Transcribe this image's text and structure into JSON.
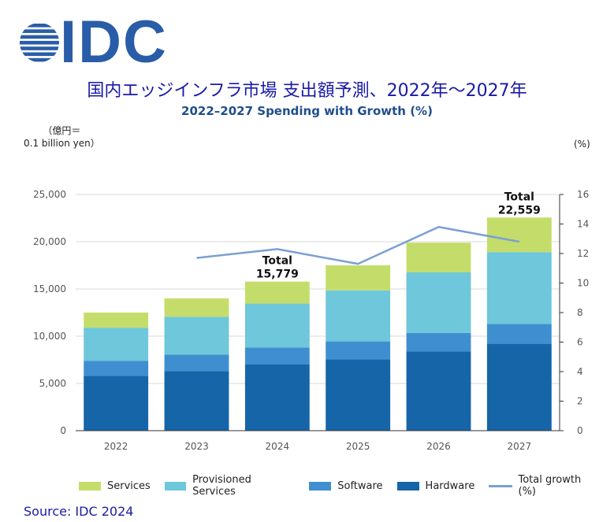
{
  "brand": {
    "name": "IDC",
    "color": "#2a5da8"
  },
  "title_jp": "国内エッジインフラ市場 支出額予測、2022年～2027年",
  "subtitle_en": "2022–2027 Spending with Growth (%)",
  "y_unit": {
    "line1": "（億円＝",
    "line2": "0.1 billion yen）"
  },
  "pct_unit": "(%)",
  "source": "Source: IDC 2024",
  "colors": {
    "hardware": "#1565a8",
    "software": "#3f8fd0",
    "provisioned": "#6ec7da",
    "services": "#c4dd6a",
    "growth": "#7b9fd3",
    "title": "#1a1aa6",
    "subtitle": "#1f4e8c"
  },
  "chart_data": {
    "type": "bar",
    "stacked": true,
    "categories": [
      "2022",
      "2023",
      "2024",
      "2025",
      "2026",
      "2027"
    ],
    "series": [
      {
        "key": "hardware",
        "name": "Hardware",
        "values": [
          5800,
          6300,
          7000,
          7550,
          8400,
          9200
        ]
      },
      {
        "key": "software",
        "name": "Software",
        "values": [
          1600,
          1750,
          1800,
          1900,
          1950,
          2100
        ]
      },
      {
        "key": "provisioned",
        "name": "Provisioned Services",
        "values": [
          3500,
          4000,
          4650,
          5400,
          6400,
          7600
        ]
      },
      {
        "key": "services",
        "name": "Services",
        "values": [
          1600,
          1950,
          2329,
          2650,
          3150,
          3659
        ]
      }
    ],
    "growth": {
      "name": "Total growth (%)",
      "x": [
        "2023",
        "2024",
        "2025",
        "2026",
        "2027"
      ],
      "values": [
        11.7,
        12.3,
        11.3,
        13.8,
        12.8
      ]
    },
    "annotations": [
      {
        "category": "2024",
        "label": "Total",
        "value": "15,779"
      },
      {
        "category": "2027",
        "label": "Total",
        "value": "22,559"
      }
    ],
    "y_left": {
      "min": 0,
      "max": 25000,
      "ticks": [
        "0",
        "5,000",
        "10,000",
        "15,000",
        "20,000",
        "25,000"
      ]
    },
    "y_right": {
      "min": 0,
      "max": 16,
      "ticks": [
        "0",
        "2",
        "4",
        "6",
        "8",
        "10",
        "12",
        "14",
        "16"
      ]
    },
    "legend_order": [
      "Services",
      "Provisioned Services",
      "Software",
      "Hardware",
      "Total growth (%)"
    ]
  }
}
